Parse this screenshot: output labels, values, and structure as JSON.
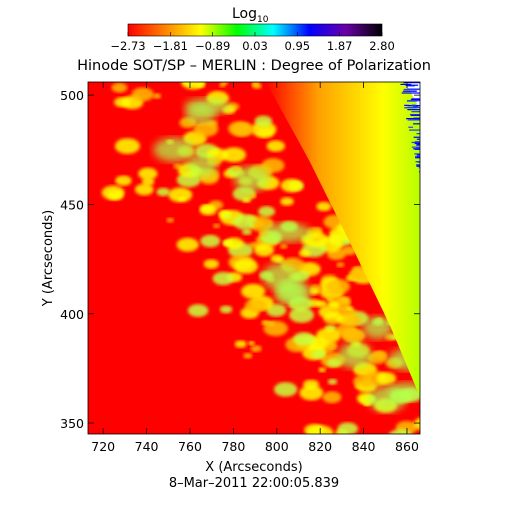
{
  "chart_data": {
    "type": "heatmap",
    "title": "Hinode SOT/SP – MERLIN : Degree of Polarization",
    "xlabel": "X (Arcseconds)",
    "ylabel": "Y (Arcseconds)",
    "xlim": [
      713,
      866
    ],
    "ylim": [
      345,
      506
    ],
    "x_ticks": [
      720,
      740,
      760,
      780,
      800,
      820,
      840,
      860
    ],
    "y_ticks": [
      350,
      400,
      450,
      500
    ],
    "timestamp": "8–Mar–2011 22:00:05.839",
    "colorbar": {
      "title_main": "Log",
      "title_sub": "10",
      "range": [
        -2.73,
        2.8
      ],
      "tick_labels": [
        "−2.73",
        "−1.81",
        "−0.89",
        "0.03",
        "0.95",
        "1.87",
        "2.80"
      ],
      "colors": [
        "#ff0000",
        "#ff8000",
        "#ffff00",
        "#00ff00",
        "#00ffff",
        "#0000ff",
        "#6a00a8",
        "#000000"
      ]
    },
    "limb_points": [
      [
        795,
        506
      ],
      [
        815,
        470
      ],
      [
        835,
        430
      ],
      [
        852,
        395
      ],
      [
        866,
        362
      ]
    ],
    "limb_x_at_top": 795,
    "limb_x_at_bottom": 866,
    "limb_band_width": 20
  }
}
